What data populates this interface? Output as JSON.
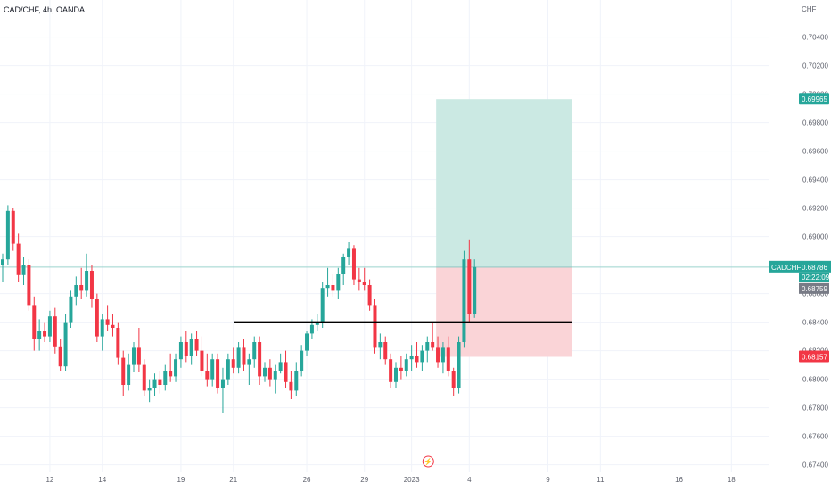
{
  "header": {
    "title": "CAD/CHF, 4h, OANDA",
    "unit": "CHF"
  },
  "colors": {
    "up": "#26a69a",
    "down": "#f23645",
    "tp_zone": "#cbe9e3",
    "sl_zone": "#fad4d7",
    "grid": "#f0f3fa",
    "level": "#000000",
    "price_line": "#9bd3cd",
    "grey_tag": "#787b86",
    "event": "#f23645"
  },
  "chart_data": {
    "type": "candlestick",
    "symbol": "CADCHF",
    "ylim": [
      0.674,
      0.706
    ],
    "y_ticks": [
      "0.67400",
      "0.67600",
      "0.67800",
      "0.68000",
      "0.68200",
      "0.68400",
      "0.68600",
      "0.68800",
      "0.69000",
      "0.69200",
      "0.69400",
      "0.69600",
      "0.69800",
      "0.70000",
      "0.70200",
      "0.70400"
    ],
    "x_tick_labels": [
      {
        "label": "12",
        "i": 9
      },
      {
        "label": "14",
        "i": 19
      },
      {
        "label": "19",
        "i": 34
      },
      {
        "label": "21",
        "i": 44
      },
      {
        "label": "26",
        "i": 58
      },
      {
        "label": "29",
        "i": 69
      },
      {
        "label": "2023",
        "i": 78
      },
      {
        "label": "4",
        "i": 89
      },
      {
        "label": "9",
        "i": 104
      },
      {
        "label": "11",
        "i": 114
      },
      {
        "label": "16",
        "i": 129
      },
      {
        "label": "18",
        "i": 139
      }
    ],
    "candles": [
      [
        0.688,
        0.6888,
        0.6868,
        0.6884
      ],
      [
        0.6884,
        0.6922,
        0.688,
        0.6918
      ],
      [
        0.6918,
        0.692,
        0.689,
        0.6895
      ],
      [
        0.6895,
        0.6902,
        0.6868,
        0.6873
      ],
      [
        0.6873,
        0.6886,
        0.6866,
        0.688
      ],
      [
        0.688,
        0.6884,
        0.6848,
        0.6852
      ],
      [
        0.6852,
        0.6858,
        0.682,
        0.6828
      ],
      [
        0.6828,
        0.6842,
        0.682,
        0.6834
      ],
      [
        0.6834,
        0.684,
        0.6826,
        0.683
      ],
      [
        0.683,
        0.6848,
        0.6826,
        0.6844
      ],
      [
        0.6844,
        0.685,
        0.6818,
        0.6823
      ],
      [
        0.6823,
        0.6828,
        0.6806,
        0.6809
      ],
      [
        0.6809,
        0.6846,
        0.6806,
        0.684
      ],
      [
        0.684,
        0.6862,
        0.6836,
        0.6858
      ],
      [
        0.6858,
        0.6872,
        0.6852,
        0.6866
      ],
      [
        0.6866,
        0.6878,
        0.6856,
        0.6862
      ],
      [
        0.6862,
        0.6888,
        0.6858,
        0.6876
      ],
      [
        0.6876,
        0.688,
        0.685,
        0.6856
      ],
      [
        0.6856,
        0.686,
        0.6826,
        0.683
      ],
      [
        0.683,
        0.6846,
        0.682,
        0.6842
      ],
      [
        0.6842,
        0.6852,
        0.6834,
        0.6838
      ],
      [
        0.6838,
        0.6846,
        0.683,
        0.6836
      ],
      [
        0.6836,
        0.684,
        0.681,
        0.6815
      ],
      [
        0.6815,
        0.682,
        0.6788,
        0.6796
      ],
      [
        0.6796,
        0.6818,
        0.6792,
        0.681
      ],
      [
        0.681,
        0.6826,
        0.6805,
        0.6822
      ],
      [
        0.6822,
        0.6836,
        0.6805,
        0.681
      ],
      [
        0.681,
        0.6814,
        0.6788,
        0.6792
      ],
      [
        0.6792,
        0.68,
        0.6784,
        0.6794
      ],
      [
        0.6794,
        0.6804,
        0.6788,
        0.68
      ],
      [
        0.68,
        0.6806,
        0.679,
        0.6796
      ],
      [
        0.6796,
        0.681,
        0.6792,
        0.6806
      ],
      [
        0.6806,
        0.6818,
        0.6798,
        0.6802
      ],
      [
        0.6802,
        0.6818,
        0.6798,
        0.6814
      ],
      [
        0.6814,
        0.683,
        0.6808,
        0.6826
      ],
      [
        0.6826,
        0.6834,
        0.6812,
        0.6816
      ],
      [
        0.6816,
        0.6832,
        0.681,
        0.6828
      ],
      [
        0.6828,
        0.6834,
        0.6816,
        0.682
      ],
      [
        0.682,
        0.683,
        0.6802,
        0.6806
      ],
      [
        0.6806,
        0.6818,
        0.6795,
        0.68
      ],
      [
        0.68,
        0.6818,
        0.6795,
        0.6814
      ],
      [
        0.6814,
        0.6818,
        0.679,
        0.6794
      ],
      [
        0.6794,
        0.6808,
        0.6776,
        0.68
      ],
      [
        0.68,
        0.6818,
        0.6796,
        0.6814
      ],
      [
        0.6814,
        0.6822,
        0.6804,
        0.6808
      ],
      [
        0.6808,
        0.6826,
        0.6804,
        0.6822
      ],
      [
        0.6822,
        0.6828,
        0.6806,
        0.681
      ],
      [
        0.681,
        0.6818,
        0.6796,
        0.6814
      ],
      [
        0.6814,
        0.683,
        0.6808,
        0.6826
      ],
      [
        0.6826,
        0.683,
        0.6796,
        0.6802
      ],
      [
        0.6802,
        0.6812,
        0.6798,
        0.6808
      ],
      [
        0.6808,
        0.6814,
        0.6795,
        0.68
      ],
      [
        0.68,
        0.681,
        0.679,
        0.6806
      ],
      [
        0.6806,
        0.6818,
        0.6804,
        0.6812
      ],
      [
        0.6812,
        0.682,
        0.6794,
        0.6798
      ],
      [
        0.6798,
        0.6806,
        0.6786,
        0.6792
      ],
      [
        0.6792,
        0.6812,
        0.6788,
        0.6806
      ],
      [
        0.6806,
        0.6824,
        0.6802,
        0.682
      ],
      [
        0.682,
        0.6834,
        0.6816,
        0.6832
      ],
      [
        0.6832,
        0.6842,
        0.6828,
        0.6838
      ],
      [
        0.6838,
        0.6846,
        0.6834,
        0.684
      ],
      [
        0.684,
        0.6868,
        0.6836,
        0.6864
      ],
      [
        0.6864,
        0.6878,
        0.6858,
        0.6866
      ],
      [
        0.6866,
        0.6874,
        0.6858,
        0.6862
      ],
      [
        0.6862,
        0.6878,
        0.6856,
        0.6874
      ],
      [
        0.6874,
        0.6888,
        0.6866,
        0.6886
      ],
      [
        0.6886,
        0.6896,
        0.688,
        0.6892
      ],
      [
        0.6892,
        0.6894,
        0.6866,
        0.687
      ],
      [
        0.687,
        0.6878,
        0.6862,
        0.6868
      ],
      [
        0.6868,
        0.6878,
        0.6862,
        0.6866
      ],
      [
        0.6866,
        0.687,
        0.6848,
        0.6852
      ],
      [
        0.6852,
        0.6856,
        0.6818,
        0.6822
      ],
      [
        0.6822,
        0.6832,
        0.6814,
        0.6826
      ],
      [
        0.6826,
        0.683,
        0.681,
        0.6814
      ],
      [
        0.6814,
        0.6818,
        0.6794,
        0.6798
      ],
      [
        0.6798,
        0.6812,
        0.6794,
        0.6808
      ],
      [
        0.6808,
        0.6816,
        0.68,
        0.6806
      ],
      [
        0.6806,
        0.6818,
        0.6802,
        0.6814
      ],
      [
        0.6814,
        0.6824,
        0.6806,
        0.6816
      ],
      [
        0.6816,
        0.6826,
        0.6808,
        0.6812
      ],
      [
        0.6812,
        0.6824,
        0.6806,
        0.682
      ],
      [
        0.682,
        0.683,
        0.6812,
        0.6826
      ],
      [
        0.6826,
        0.684,
        0.682,
        0.6822
      ],
      [
        0.6822,
        0.683,
        0.6808,
        0.6812
      ],
      [
        0.6812,
        0.6826,
        0.6804,
        0.6822
      ],
      [
        0.6822,
        0.683,
        0.6802,
        0.6806
      ],
      [
        0.6806,
        0.6808,
        0.6788,
        0.6794
      ],
      [
        0.6794,
        0.683,
        0.679,
        0.6826
      ],
      [
        0.6826,
        0.689,
        0.6822,
        0.6884
      ],
      [
        0.6884,
        0.6898,
        0.684,
        0.6846
      ],
      [
        0.6846,
        0.6884,
        0.6843,
        0.68786
      ]
    ]
  },
  "overlays": {
    "horizontal_level": {
      "price": 0.684,
      "from_i": 44,
      "to_i": 108
    },
    "position": {
      "entry": 0.68786,
      "target": 0.69965,
      "stop": 0.68157,
      "from_i": 82,
      "to_i": 108
    }
  },
  "price_scale": {
    "target_tag": "0.69965",
    "symbol_tag": "CADCHF",
    "last_tag": "0.68786",
    "countdown_tag": "02:22:09",
    "grey_tag": "0.68759",
    "stop_tag": "0.68157"
  },
  "event_marker": {
    "glyph": "⚡",
    "i": 81
  }
}
